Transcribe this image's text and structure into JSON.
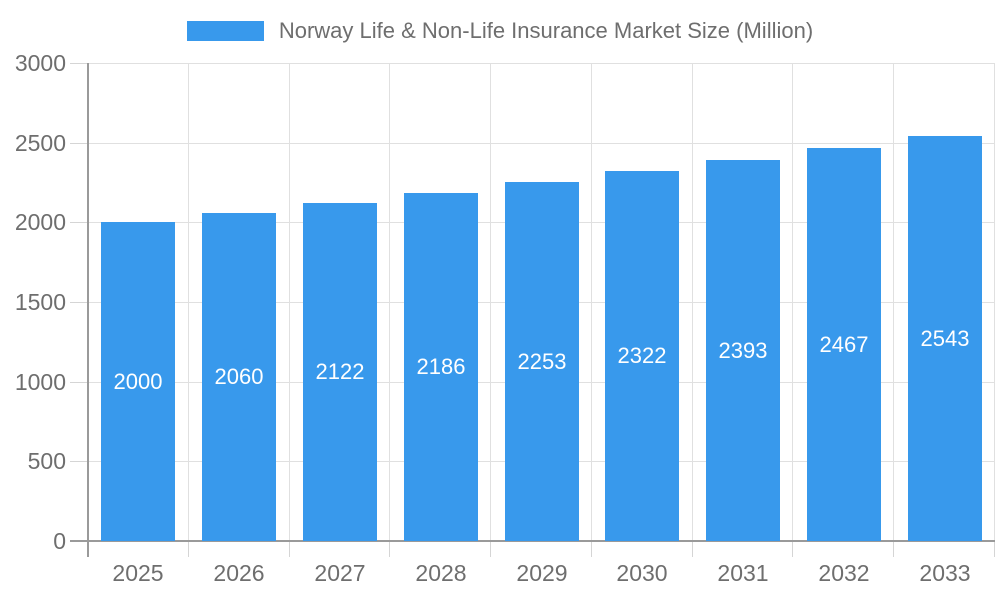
{
  "chart_data": {
    "type": "bar",
    "title": "Norway Life & Non-Life Insurance Market Size (Million)",
    "legend": [
      {
        "label": "Norway Life & Non-Life Insurance Market Size (Million)",
        "color": "#3899EC"
      }
    ],
    "categories": [
      "2025",
      "2026",
      "2027",
      "2028",
      "2029",
      "2030",
      "2031",
      "2032",
      "2033"
    ],
    "values": [
      2000,
      2060,
      2122,
      2186,
      2253,
      2322,
      2393,
      2467,
      2543
    ],
    "xlabel": "",
    "ylabel": "",
    "ylim": [
      0,
      3000
    ],
    "yticks": [
      0,
      500,
      1000,
      1500,
      2000,
      2500,
      3000
    ],
    "legend_position": "top-center",
    "grid": true,
    "value_labels_position": "inside-middle",
    "colors": {
      "bar": "#3899EC",
      "value_label": "#FFFFFF",
      "axis_text": "#6E6E6E",
      "gridline": "#E0E0E0",
      "tick": "#D5D5D5",
      "axis_line": "#9A9A9A",
      "background": "#FFFFFF"
    }
  }
}
